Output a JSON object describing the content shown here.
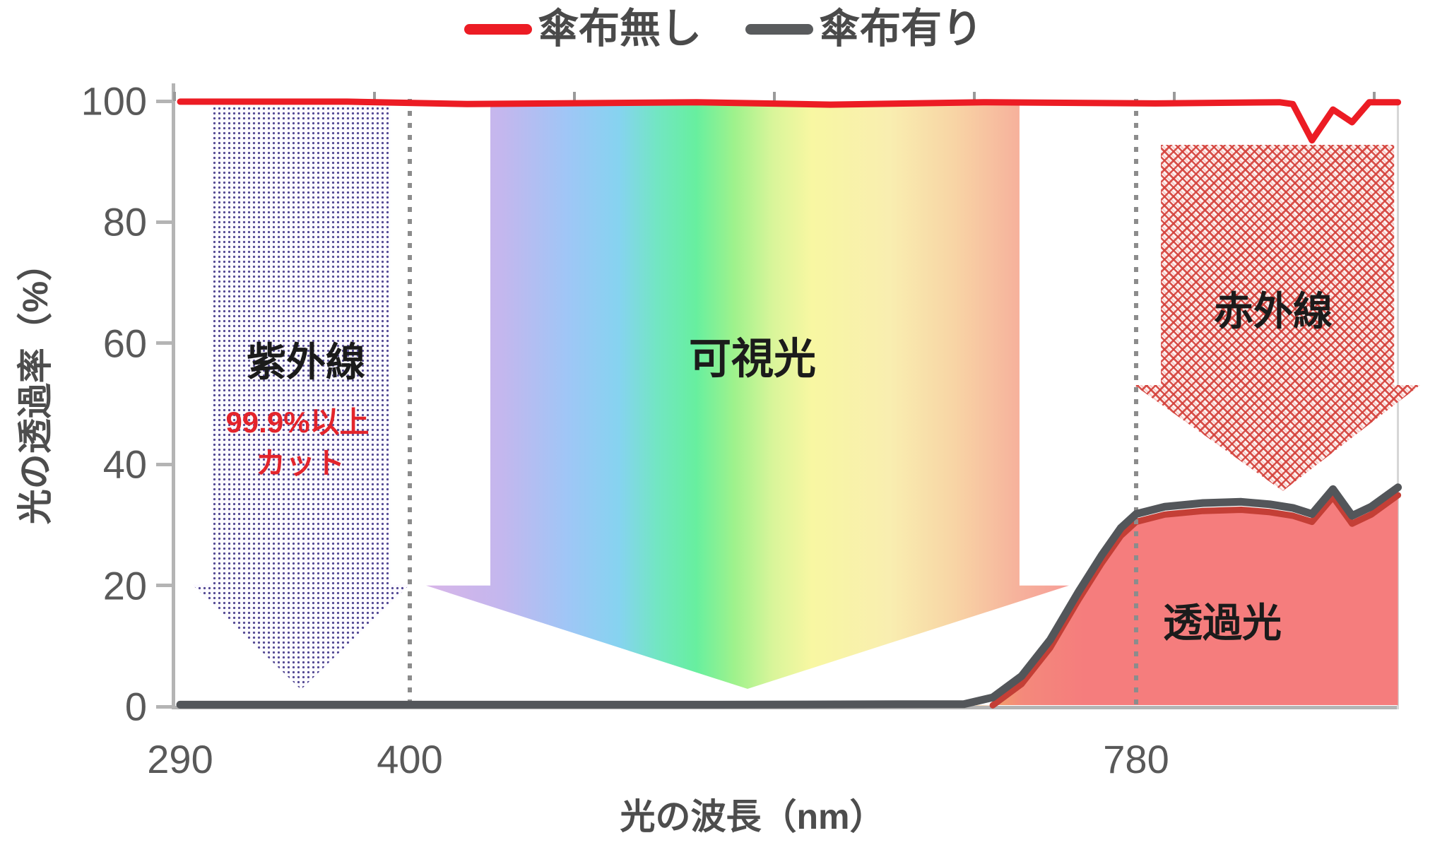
{
  "legend": {
    "items": [
      {
        "label": "傘布無し",
        "color": "#ec1c24"
      },
      {
        "label": "傘布有り",
        "color": "#595b5d"
      }
    ]
  },
  "labels": {
    "uv": "紫外線",
    "uv_cut_1": "99.9%以上",
    "uv_cut_2": "カット",
    "visible": "可視光",
    "infrared": "赤外線",
    "transmitted": "透過光"
  },
  "colors": {
    "red_line": "#ec1c24",
    "gray_line": "#53565a",
    "fill_salmon": "#f57d7d",
    "fill_edge_dark_red": "#c43f36",
    "uv_dot_purple": "#4a3f8e",
    "ir_hatch_red": "#d4403a",
    "dotted_line_gray": "#8c8c8c",
    "uv_cut_text_red": "#e3242b",
    "axis_text_gray": "#595959"
  },
  "chart_data": {
    "type": "line",
    "title": "",
    "xlabel": "光の波長（nm）",
    "ylabel": "光の透過率（%）",
    "x_ticks": [
      290,
      400,
      780
    ],
    "x_range": [
      290,
      917
    ],
    "y_ticks": [
      0,
      20,
      40,
      60,
      80,
      100
    ],
    "ylim": [
      0,
      100
    ],
    "grid": false,
    "legend_position": "top-center",
    "band_boundaries_nm": [
      400,
      780
    ],
    "series": [
      {
        "name": "傘布無し",
        "color": "#ec1c24",
        "points": [
          [
            290,
            99.9
          ],
          [
            370,
            99.9
          ],
          [
            430,
            99.5
          ],
          [
            550,
            99.8
          ],
          [
            620,
            99.4
          ],
          [
            700,
            99.8
          ],
          [
            790,
            99.6
          ],
          [
            855,
            99.8
          ],
          [
            862,
            99.5
          ],
          [
            872,
            93.5
          ],
          [
            883,
            98.6
          ],
          [
            893,
            96.5
          ],
          [
            902,
            99.8
          ],
          [
            917,
            99.8
          ]
        ]
      },
      {
        "name": "傘布有り",
        "color": "#53565a",
        "points": [
          [
            290,
            0.3
          ],
          [
            550,
            0.3
          ],
          [
            690,
            0.4
          ],
          [
            705,
            1.5
          ],
          [
            720,
            5
          ],
          [
            735,
            11
          ],
          [
            750,
            19
          ],
          [
            762,
            25
          ],
          [
            772,
            29.5
          ],
          [
            780,
            31.8
          ],
          [
            795,
            33
          ],
          [
            815,
            33.6
          ],
          [
            835,
            33.8
          ],
          [
            850,
            33.4
          ],
          [
            862,
            32.8
          ],
          [
            872,
            31.8
          ],
          [
            883,
            35.9
          ],
          [
            893,
            31.5
          ],
          [
            903,
            33
          ],
          [
            917,
            36.2
          ]
        ]
      }
    ],
    "annotations": [
      {
        "text": "紫外線",
        "band_nm": [
          290,
          400
        ],
        "note": "99.9%以上 カット"
      },
      {
        "text": "可視光",
        "band_nm": [
          400,
          780
        ]
      },
      {
        "text": "赤外線",
        "band_nm": [
          780,
          917
        ]
      },
      {
        "text": "透過光",
        "region": "under gray curve 700-917nm"
      }
    ]
  }
}
